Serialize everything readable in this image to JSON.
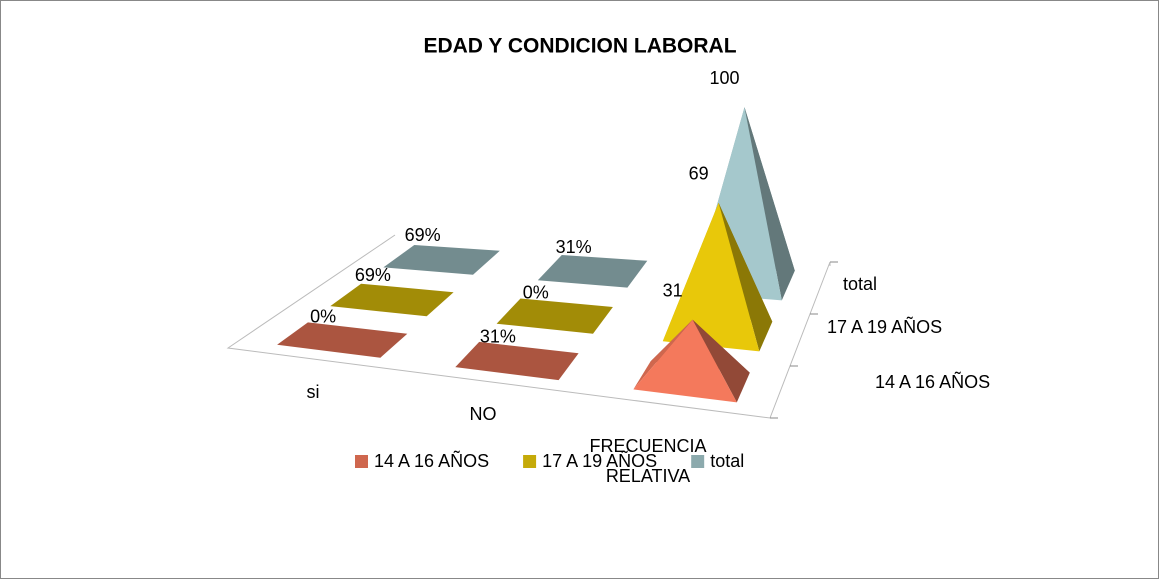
{
  "chart_data": {
    "type": "pyramid3d",
    "title": "EDAD Y CONDICION LABORAL",
    "categories": [
      "si",
      "NO",
      "FRECUENCIA RELATIVA"
    ],
    "series": [
      {
        "name": "14 A 16 AÑOS",
        "color": "#f4795c",
        "values": [
          0,
          0.31,
          31
        ],
        "value_labels": [
          "0%",
          "31%",
          "31"
        ]
      },
      {
        "name": "17 A 19 AÑOS",
        "color": "#e8c80a",
        "values": [
          0.69,
          0,
          69
        ],
        "value_labels": [
          "69%",
          "0%",
          "69"
        ]
      },
      {
        "name": "total",
        "color": "#a5c8cc",
        "values": [
          0.69,
          0.31,
          100
        ],
        "value_labels": [
          "69%",
          "31%",
          "100"
        ]
      }
    ],
    "legend": "bottom"
  }
}
